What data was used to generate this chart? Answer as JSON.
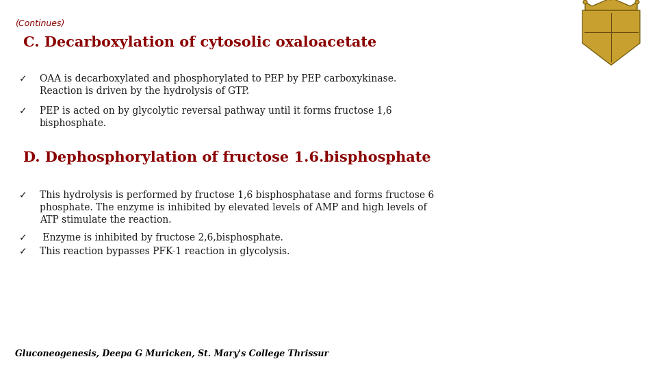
{
  "background_color": "#ffffff",
  "continues_text": "(Continues)",
  "continues_color": "#8B0000",
  "continues_fontsize": 9,
  "title_C": "C. Decarboxylation of cytosolic oxaloacetate",
  "title_C_color": "#8B0000",
  "title_C_fontsize": 15,
  "bullet_C1_line1": "OAA is decarboxylated and phosphorylated to PEP by PEP carboxykinase.",
  "bullet_C1_line2": "Reaction is driven by the hydrolysis of GTP.",
  "bullet_C2_line1": "PEP is acted on by glycolytic reversal pathway until it forms fructose 1,6",
  "bullet_C2_line2": "bisphosphate.",
  "title_D": "D. Dephosphorylation of fructose 1.6.bisphosphate",
  "title_D_color": "#8B0000",
  "title_D_fontsize": 15,
  "bullet_D1_line1": "This hydrolysis is performed by fructose 1,6 bisphosphatase and forms fructose 6",
  "bullet_D1_line2": "phosphate. The enzyme is inhibited by elevated levels of AMP and high levels of",
  "bullet_D1_line3": "ATP stimulate the reaction.",
  "bullet_D2": " Enzyme is inhibited by fructose 2,6,bisphosphate.",
  "bullet_D3": "This reaction bypasses PFK-1 reaction in glycolysis.",
  "footer": "Gluconeogenesis, Deepa G Muricken, St. Mary's College Thrissur",
  "footer_color": "#000000",
  "footer_fontsize": 9,
  "body_fontsize": 10,
  "body_color": "#1a1a1a",
  "check_color": "#1a1a1a"
}
